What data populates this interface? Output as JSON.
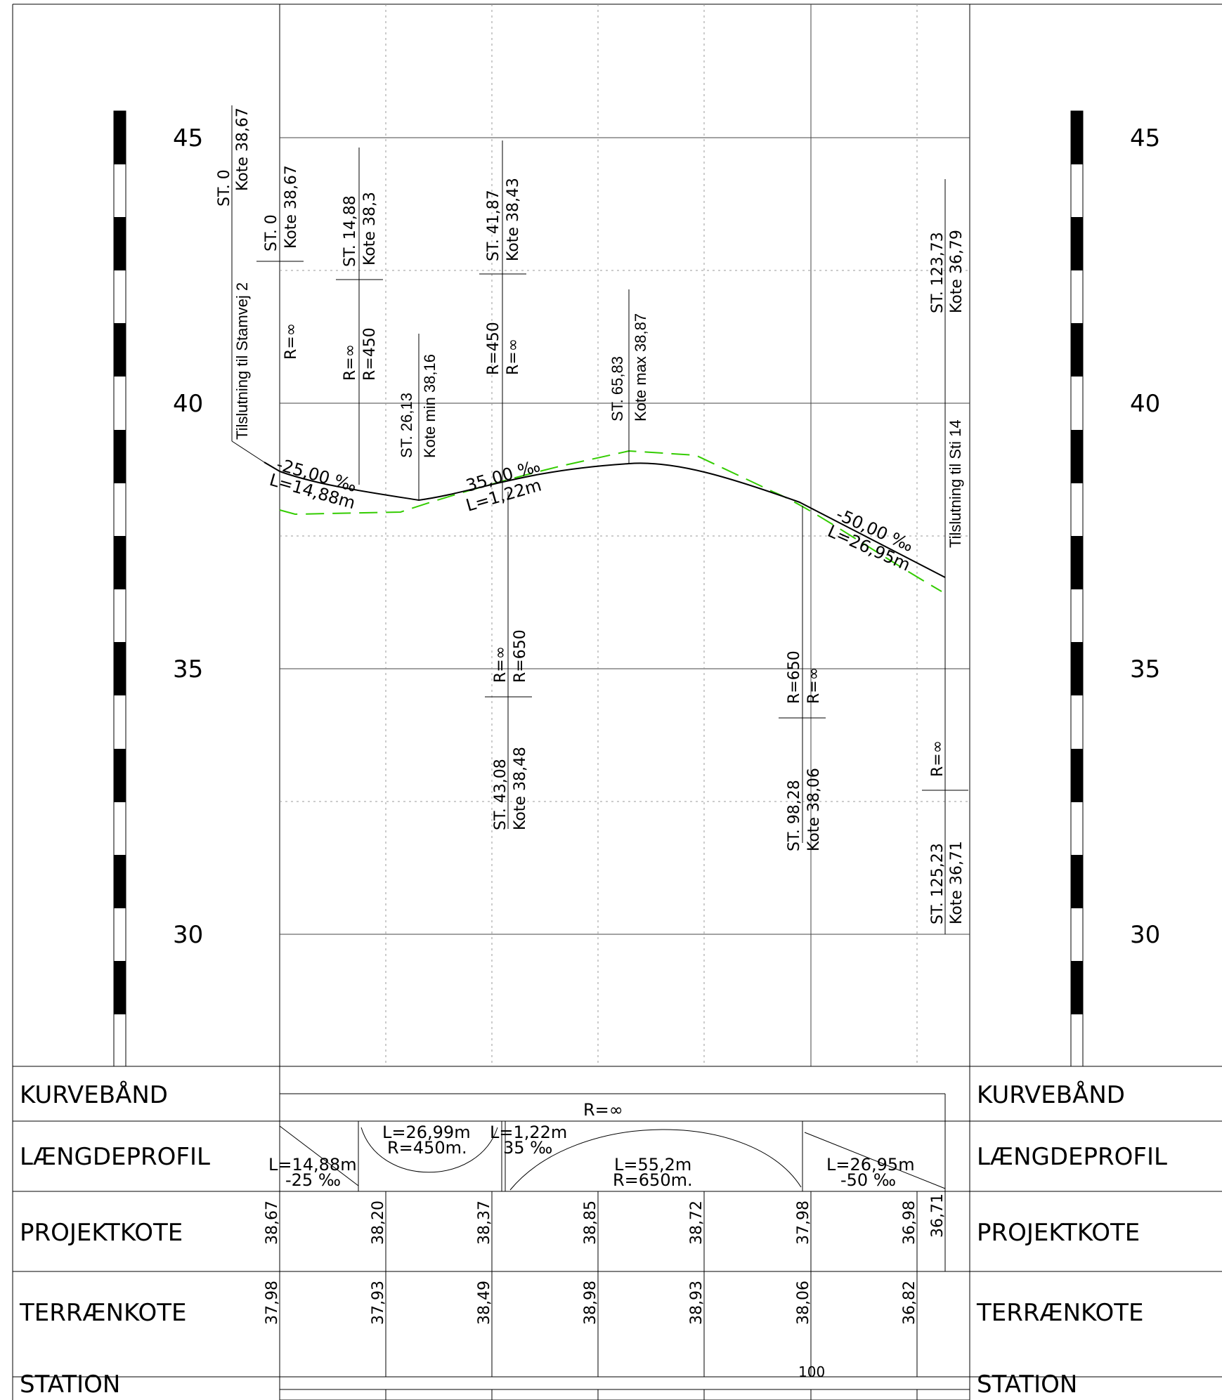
{
  "scale": {
    "ticks": [
      "45",
      "40",
      "35",
      "30"
    ]
  },
  "labels": {
    "st0_top": "ST. 0",
    "kote_3867_top": "Kote 38,67",
    "tilslutning_stamvej": "Tilslutning til Stamvej 2",
    "st0": "ST. 0",
    "kote_3867": "Kote 38,67",
    "r_inf_1": "R=∞",
    "st1488": "ST. 14,88",
    "kote383": "Kote 38,3",
    "r_inf_2": "R=∞",
    "r450_1": "R=450",
    "st2613": "ST. 26,13",
    "kote_min": "Kote min 38,16",
    "st4187": "ST. 41,87",
    "kote3843": "Kote 38,43",
    "r450_2": "R=450",
    "r_inf_3": "R=∞",
    "st6583": "ST. 65,83",
    "kote_max": "Kote max 38,87",
    "st12373": "ST. 123,73",
    "kote3679": "Kote 36,79",
    "tilslutning_sti": "Tilslutning til Sti 14",
    "grade1": "-25,00 ‰",
    "len1": "L=14,88m",
    "grade2": "35,00 ‰",
    "len2": "L=1,22m",
    "grade3": "-50,00 ‰",
    "len3": "L=26,95m",
    "r_inf_4": "R=∞",
    "r650_1": "R=650",
    "st4308": "ST. 43,08",
    "kote3848": "Kote 38,48",
    "r650_2": "R=650",
    "r_inf_5": "R=∞",
    "st9828": "ST. 98,28",
    "kote3806": "Kote 38,06",
    "r_inf_6": "R=∞",
    "st12523": "ST. 125,23",
    "kote3671": "Kote 36,71"
  },
  "bands": {
    "kurveband": "KURVEBÅND",
    "laengdeprofil": "LÆNGDEPROFIL",
    "projektkote": "PROJEKTKOTE",
    "terraenkote": "TERRÆNKOTE",
    "station": "STATION"
  },
  "kurveband": {
    "r": "R=∞"
  },
  "laengdeprofil": {
    "seg1_l": "L=14,88m",
    "seg1_g": "-25 ‰",
    "seg2_l": "L=26,99m",
    "seg2_r": "R=450m.",
    "seg3_l": "L=1,22m",
    "seg3_g": "35 ‰",
    "seg4_l": "L=55,2m",
    "seg4_r": "R=650m.",
    "seg5_l": "L=26,95m",
    "seg5_g": "-50 ‰"
  },
  "projektkote": [
    "38,67",
    "38,20",
    "38,37",
    "38,85",
    "38,72",
    "37,98",
    "36,98",
    "36,71"
  ],
  "terraenkote": [
    "37,98",
    "37,93",
    "38,49",
    "38,98",
    "38,93",
    "38,06",
    "36,82"
  ],
  "station": {
    "mark": "100"
  }
}
